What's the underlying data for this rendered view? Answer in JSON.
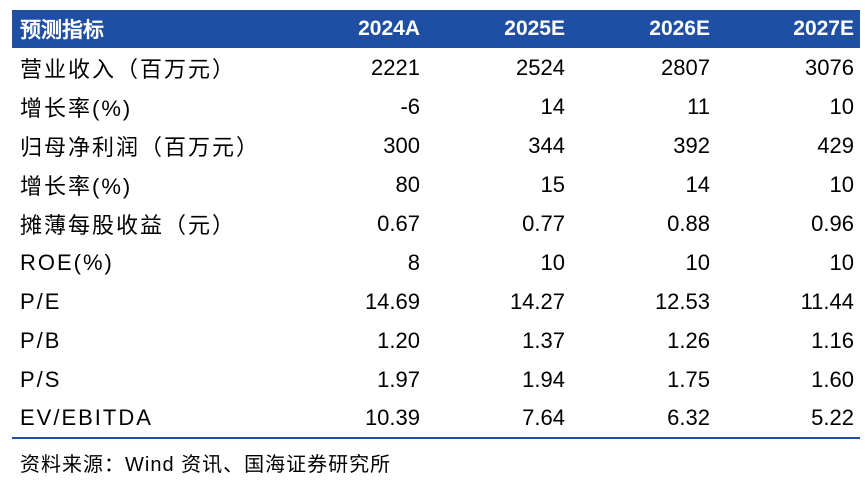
{
  "table": {
    "headers": [
      "预测指标",
      "2024A",
      "2025E",
      "2026E",
      "2027E"
    ],
    "rows": [
      {
        "label": "营业收入（百万元）",
        "values": [
          "2221",
          "2524",
          "2807",
          "3076"
        ]
      },
      {
        "label": "增长率(%)",
        "values": [
          "-6",
          "14",
          "11",
          "10"
        ]
      },
      {
        "label": "归母净利润（百万元）",
        "values": [
          "300",
          "344",
          "392",
          "429"
        ]
      },
      {
        "label": "增长率(%)",
        "values": [
          "80",
          "15",
          "14",
          "10"
        ]
      },
      {
        "label": "摊薄每股收益（元）",
        "values": [
          "0.67",
          "0.77",
          "0.88",
          "0.96"
        ]
      },
      {
        "label": "ROE(%)",
        "values": [
          "8",
          "10",
          "10",
          "10"
        ]
      },
      {
        "label": "P/E",
        "values": [
          "14.69",
          "14.27",
          "12.53",
          "11.44"
        ]
      },
      {
        "label": "P/B",
        "values": [
          "1.20",
          "1.37",
          "1.26",
          "1.16"
        ]
      },
      {
        "label": "P/S",
        "values": [
          "1.97",
          "1.94",
          "1.75",
          "1.60"
        ]
      },
      {
        "label": "EV/EBITDA",
        "values": [
          "10.39",
          "7.64",
          "6.32",
          "5.22"
        ]
      }
    ]
  },
  "source": "资料来源：Wind 资讯、国海证券研究所",
  "colors": {
    "header_bg": "#1f4fa3",
    "header_text": "#ffffff"
  }
}
